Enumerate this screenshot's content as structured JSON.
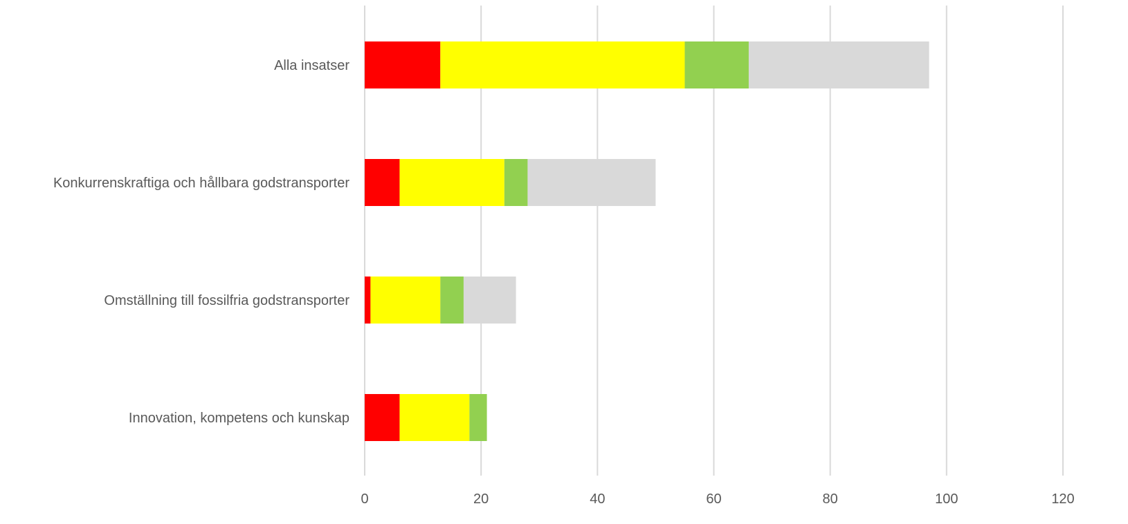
{
  "chart_data": {
    "type": "bar",
    "orientation": "horizontal",
    "stacked": true,
    "categories": [
      "Alla insatser",
      "Konkurrenskraftiga och hållbara godstransporter",
      "Omställning till fossilfria godstransporter",
      "Innovation, kompetens och kunskap"
    ],
    "series": [
      {
        "color": "#ff0000",
        "values": [
          13,
          6,
          1,
          6
        ]
      },
      {
        "color": "#ffff00",
        "values": [
          42,
          18,
          12,
          12
        ]
      },
      {
        "color": "#92d050",
        "values": [
          11,
          4,
          4,
          3
        ]
      },
      {
        "color": "#d9d9d9",
        "values": [
          31,
          22,
          9,
          0
        ]
      }
    ],
    "xlim": [
      0,
      120
    ],
    "xticks": [
      "0",
      "20",
      "40",
      "60",
      "80",
      "100",
      "120"
    ],
    "grid": true,
    "legend": "none",
    "title": "",
    "xlabel": "",
    "ylabel": ""
  }
}
